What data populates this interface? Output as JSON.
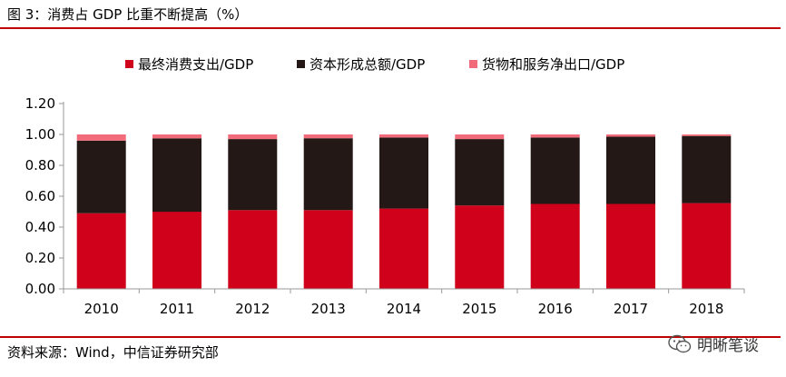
{
  "title": "图 3：消费占 GDP 比重不断提高（%）",
  "source": "资料来源：Wind，中信证券研究部",
  "watermark": {
    "text": "明晰笔谈",
    "icon": "wechat-icon"
  },
  "colors": {
    "rule": "#c00000",
    "consumption": "#d0021b",
    "capital": "#231815",
    "net_exports": "#f26b7a",
    "axis": "#999999"
  },
  "chart_data": {
    "type": "bar",
    "stacked": true,
    "categories": [
      "2010",
      "2011",
      "2012",
      "2013",
      "2014",
      "2015",
      "2016",
      "2017",
      "2018"
    ],
    "series": [
      {
        "name": "最终消费支出/GDP",
        "values": [
          0.49,
          0.5,
          0.51,
          0.51,
          0.52,
          0.54,
          0.55,
          0.55,
          0.555
        ]
      },
      {
        "name": "资本形成总额/GDP",
        "values": [
          0.47,
          0.475,
          0.46,
          0.465,
          0.46,
          0.43,
          0.43,
          0.435,
          0.435
        ]
      },
      {
        "name": "货物和服务净出口/GDP",
        "values": [
          0.04,
          0.025,
          0.03,
          0.025,
          0.02,
          0.03,
          0.02,
          0.015,
          0.01
        ]
      }
    ],
    "yticks": [
      "0.00",
      "0.20",
      "0.40",
      "0.60",
      "0.80",
      "1.00",
      "1.20"
    ],
    "ylim": [
      0,
      1.2
    ],
    "xlabel": "",
    "ylabel": "",
    "legend_position": "top",
    "grid": false
  }
}
